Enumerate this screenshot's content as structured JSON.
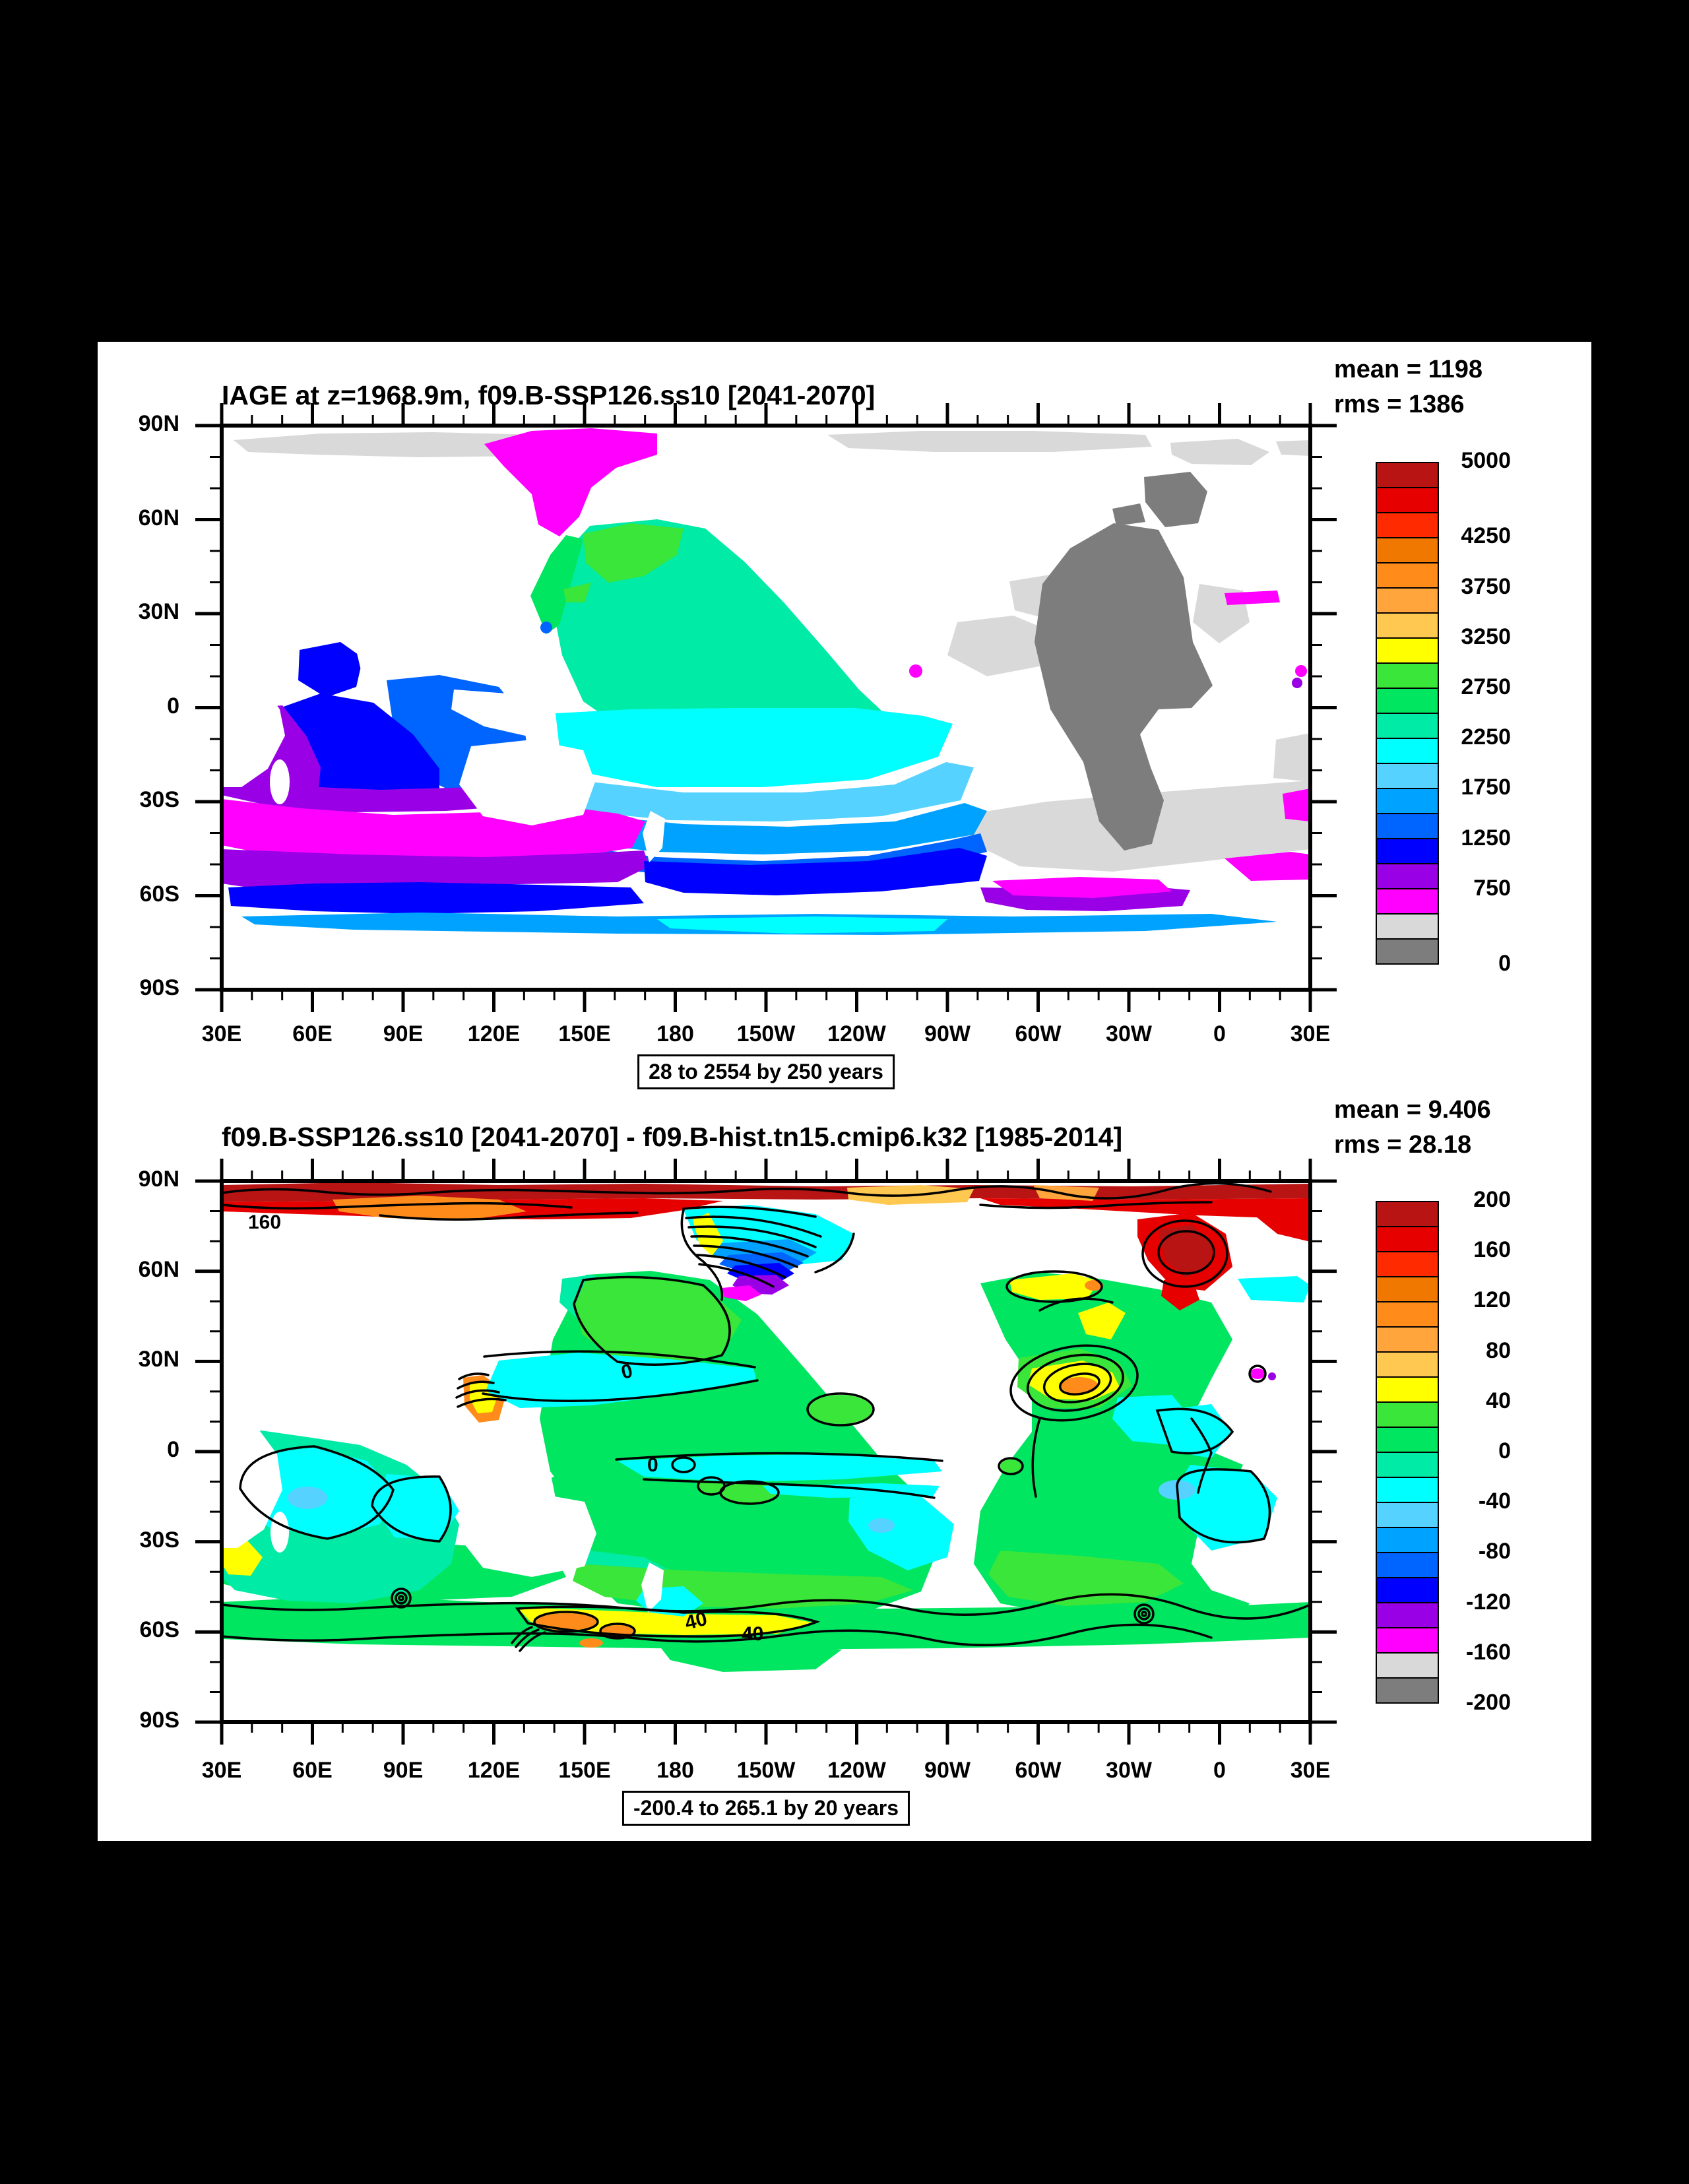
{
  "panel": {
    "canvas_bg": "#000000",
    "panel_bg": "#ffffff"
  },
  "palette_low_to_high": [
    "#7d7d7d",
    "#d9d9d9",
    "#ff00ff",
    "#9a00e6",
    "#0000ff",
    "#0064ff",
    "#00a2ff",
    "#55d2ff",
    "#00ffff",
    "#00eba5",
    "#00e661",
    "#39e639",
    "#ffff00",
    "#ffc850",
    "#ffa53c",
    "#ff8c1a",
    "#f07800",
    "#ff2a00",
    "#e60000",
    "#b81414"
  ],
  "plots": [
    {
      "title": "IAGE at z=1968.9m, f09.B-SSP126.ss10 [2041-2070]",
      "mean": "mean = 1198",
      "rms": "rms = 1386",
      "caption": "28 to 2554 by 250 years",
      "x_ticks": [
        "30E",
        "60E",
        "90E",
        "120E",
        "150E",
        "180",
        "150W",
        "120W",
        "90W",
        "60W",
        "30W",
        "0",
        "30E"
      ],
      "y_ticks": [
        "90N",
        "60N",
        "30N",
        "0",
        "30S",
        "60S",
        "90S"
      ],
      "colorbar_labels": [
        "5000",
        "4250",
        "3750",
        "3250",
        "2750",
        "2250",
        "1750",
        "1250",
        "750",
        "0"
      ]
    },
    {
      "title": "f09.B-SSP126.ss10 [2041-2070] - f09.B-hist.tn15.cmip6.k32 [1985-2014]",
      "mean": "mean = 9.406",
      "rms": "rms = 28.18",
      "caption": "-200.4 to 265.1 by 20 years",
      "x_ticks": [
        "30E",
        "60E",
        "90E",
        "120E",
        "150E",
        "180",
        "150W",
        "120W",
        "90W",
        "60W",
        "30W",
        "0",
        "30E"
      ],
      "y_ticks": [
        "90N",
        "60N",
        "30N",
        "0",
        "30S",
        "60S",
        "90S"
      ],
      "colorbar_labels": [
        "200",
        "160",
        "120",
        "80",
        "40",
        "0",
        "-40",
        "-80",
        "-120",
        "-160",
        "-200"
      ],
      "contour_labels": [
        "160",
        "0",
        "0",
        "40",
        "40"
      ]
    }
  ],
  "chart_data": [
    {
      "type": "heatmap",
      "subtype": "filled_contour_world_map",
      "title": "IAGE at z=1968.9m, f09.B-SSP126.ss10 [2041-2070]",
      "variable": "IAGE (ideal age, years)",
      "depth": "z=1968.9m",
      "case": "f09.B-SSP126.ss10",
      "period": "[2041-2070]",
      "stats": {
        "mean": 1198,
        "rms": 1386
      },
      "field_min": 28,
      "field_max": 2554,
      "contour_interval": 250,
      "caption": "28 to 2554 by 250 years",
      "colorbar": {
        "min": 0,
        "max": 5000,
        "n_colors": 20,
        "tick_labels": [
          5000,
          4250,
          3750,
          3250,
          2750,
          2250,
          1750,
          1250,
          750,
          0
        ]
      },
      "x_axis": {
        "ticks": [
          "30E",
          "60E",
          "90E",
          "120E",
          "150E",
          "180",
          "150W",
          "120W",
          "90W",
          "60W",
          "30W",
          "0",
          "30E"
        ],
        "minor_tick_deg": 10
      },
      "y_axis": {
        "ticks": [
          "90N",
          "60N",
          "30N",
          "0",
          "30S",
          "60S",
          "90S"
        ],
        "minor_tick_deg": 10
      },
      "approx_regional_values_years": [
        {
          "region": "North Atlantic deep western boundary (young)",
          "value": "0-250"
        },
        {
          "region": "Atlantic fringes / Arctic shelf",
          "value": "250-500"
        },
        {
          "region": "Central Arctic blob",
          "value": "500-750"
        },
        {
          "region": "Indian Ocean basin",
          "value": "750-1500"
        },
        {
          "region": "Indian-sector Southern Ocean 25-50S",
          "value": "500-1000"
        },
        {
          "region": "North Pacific (oldest water)",
          "value": "2250-3000"
        },
        {
          "region": "Tropical and South Pacific",
          "value": "1500-2250"
        },
        {
          "region": "South Atlantic 35-55S",
          "value": "250-500"
        },
        {
          "region": "Circumpolar 50-65S",
          "value": "1000-1750"
        }
      ]
    },
    {
      "type": "heatmap",
      "subtype": "filled_contour_difference_map",
      "title": "f09.B-SSP126.ss10 [2041-2070] - f09.B-hist.tn15.cmip6.k32 [1985-2014]",
      "stats": {
        "mean": 9.406,
        "rms": 28.18
      },
      "field_min": -200.4,
      "field_max": 265.1,
      "contour_interval": 20,
      "caption": "-200.4 to 265.1 by 20 years",
      "colorbar": {
        "min": -200,
        "max": 200,
        "n_colors": 20,
        "tick_labels": [
          200,
          160,
          120,
          80,
          40,
          0,
          -40,
          -80,
          -120,
          -160,
          -200
        ]
      },
      "x_axis": {
        "ticks": [
          "30E",
          "60E",
          "90E",
          "120E",
          "150E",
          "180",
          "150W",
          "120W",
          "90W",
          "60W",
          "30W",
          "0",
          "30E"
        ],
        "minor_tick_deg": 10
      },
      "y_axis": {
        "ticks": [
          "90N",
          "60N",
          "30N",
          "0",
          "30S",
          "60S",
          "90S"
        ],
        "minor_tick_deg": 10
      },
      "labeled_contours": [
        {
          "value": 160,
          "approx_location": "Arctic ~40E 84N"
        },
        {
          "value": 0,
          "approx_location": "NW Pacific ~165E 28N"
        },
        {
          "value": 0,
          "approx_location": "W Pacific ~172E 2S"
        },
        {
          "value": 40,
          "approx_location": "S Pacific ~178W 57S"
        },
        {
          "value": 40,
          "approx_location": "S Pacific ~162W 60S"
        }
      ],
      "approx_regional_values_years": [
        {
          "region": "Arctic band 83-90N",
          "value": "120-200"
        },
        {
          "region": "Chukchi/Beaufort anomaly fan",
          "value": "-160 to -40"
        },
        {
          "region": "Nordic Seas blob",
          "value": "120-200"
        },
        {
          "region": "NW Atlantic Gulf Stream rings",
          "value": "40-120"
        },
        {
          "region": "Most of Pacific/Atlantic",
          "value": "0-40"
        },
        {
          "region": "Subtropical gyres and Indian Ocean patches",
          "value": "-40-0"
        },
        {
          "region": "Southern Ocean 55-62S band",
          "value": "40-100"
        }
      ]
    }
  ]
}
